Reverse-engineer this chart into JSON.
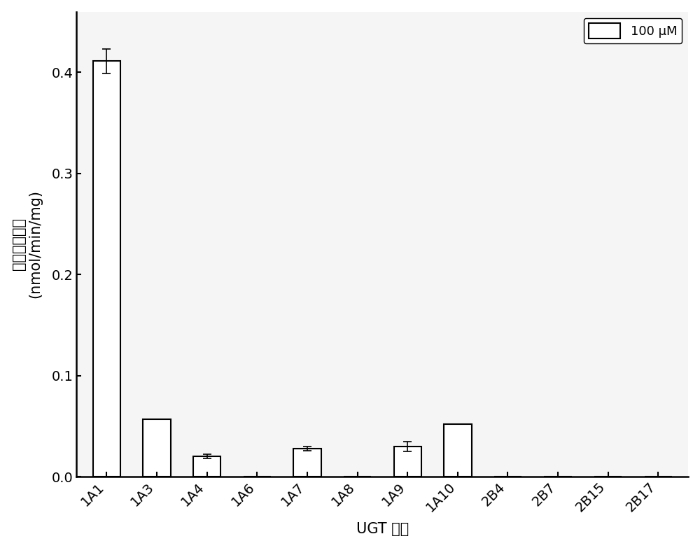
{
  "categories": [
    "1A1",
    "1A3",
    "1A4",
    "1A6",
    "1A7",
    "1A8",
    "1A9",
    "1A10",
    "2B4",
    "2B7",
    "2B15",
    "2B17"
  ],
  "values": [
    0.411,
    0.057,
    0.02,
    0.0,
    0.028,
    0.0,
    0.03,
    0.052,
    0.0,
    0.0,
    0.0,
    0.0
  ],
  "errors": [
    0.012,
    0.0,
    0.002,
    0.0,
    0.002,
    0.0,
    0.005,
    0.0,
    0.0,
    0.0,
    0.0,
    0.0
  ],
  "bar_color": "#ffffff",
  "bar_edgecolor": "#000000",
  "background_color": "#ffffff",
  "plot_bg_color": "#f5f5f5",
  "ylabel_chinese": "产物生成速率",
  "ylabel_english": "(nmol/min/mg)",
  "xlabel_ugt": "UGT",
  "xlabel_chinese": "亚型",
  "legend_label": "100 μM",
  "ylim": [
    0.0,
    0.46
  ],
  "yticks": [
    0.0,
    0.1,
    0.2,
    0.3,
    0.4
  ],
  "axis_fontsize": 15,
  "tick_fontsize": 14,
  "legend_fontsize": 13,
  "bar_width": 0.55
}
